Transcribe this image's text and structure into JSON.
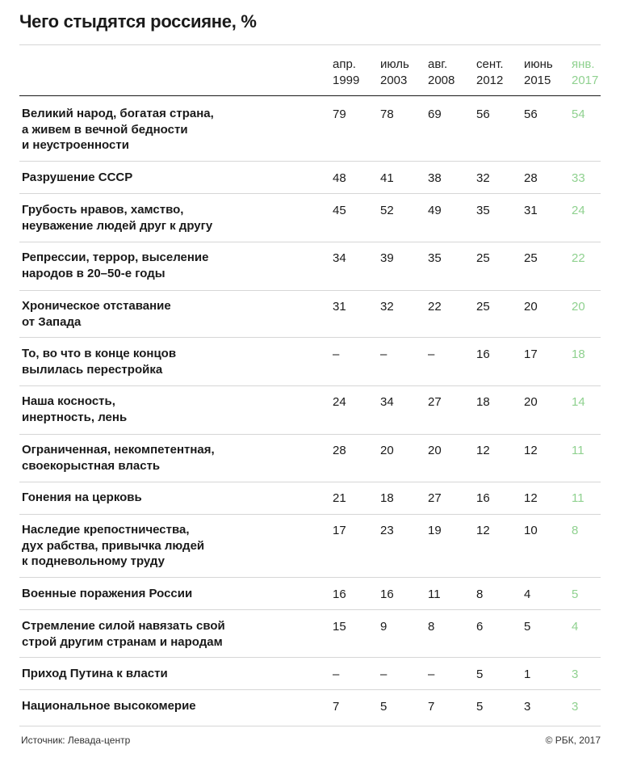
{
  "title": "Чего стыдятся россияне, %",
  "highlight_color": "#8fd18f",
  "columns": [
    {
      "l1": "апр.",
      "l2": "1999"
    },
    {
      "l1": "июль",
      "l2": "2003"
    },
    {
      "l1": "авг.",
      "l2": "2008"
    },
    {
      "l1": "сент.",
      "l2": "2012"
    },
    {
      "l1": "июнь",
      "l2": "2015"
    },
    {
      "l1": "янв.",
      "l2": "2017"
    }
  ],
  "rows": [
    {
      "label": "Великий народ, богатая страна,\nа живем в вечной бедности\nи неустроенности",
      "values": [
        "79",
        "78",
        "69",
        "56",
        "56",
        "54"
      ]
    },
    {
      "label": "Разрушение СССР",
      "values": [
        "48",
        "41",
        "38",
        "32",
        "28",
        "33"
      ]
    },
    {
      "label": "Грубость нравов, хамство,\nнеуважение людей друг к другу",
      "values": [
        "45",
        "52",
        "49",
        "35",
        "31",
        "24"
      ]
    },
    {
      "label": "Репрессии, террор, выселение\nнародов в 20–50-е годы",
      "values": [
        "34",
        "39",
        "35",
        "25",
        "25",
        "22"
      ]
    },
    {
      "label": "Хроническое отставание\nот Запада",
      "values": [
        "31",
        "32",
        "22",
        "25",
        "20",
        "20"
      ]
    },
    {
      "label": "То, во что в конце концов\nвылилась перестройка",
      "values": [
        "–",
        "–",
        "–",
        "16",
        "17",
        "18"
      ]
    },
    {
      "label": "Наша косность,\nинертность, лень",
      "values": [
        "24",
        "34",
        "27",
        "18",
        "20",
        "14"
      ]
    },
    {
      "label": "Ограниченная, некомпетентная,\nсвоекорыстная власть",
      "values": [
        "28",
        "20",
        "20",
        "12",
        "12",
        "11"
      ]
    },
    {
      "label": "Гонения на церковь",
      "values": [
        "21",
        "18",
        "27",
        "16",
        "12",
        "11"
      ]
    },
    {
      "label": "Наследие крепостничества,\nдух рабства, привычка людей\nк подневольному труду",
      "values": [
        "17",
        "23",
        "19",
        "12",
        "10",
        "8"
      ]
    },
    {
      "label": "Военные поражения России",
      "values": [
        "16",
        "16",
        "11",
        "8",
        "4",
        "5"
      ]
    },
    {
      "label": "Стремление силой навязать свой\nстрой другим странам и народам",
      "values": [
        "15",
        "9",
        "8",
        "6",
        "5",
        "4"
      ]
    },
    {
      "label": "Приход Путина к власти",
      "values": [
        "–",
        "–",
        "–",
        "5",
        "1",
        "3"
      ]
    },
    {
      "label": "Национальное высокомерие",
      "values": [
        "7",
        "5",
        "7",
        "5",
        "3",
        "3"
      ]
    }
  ],
  "chart_data": {
    "type": "table",
    "title": "Чего стыдятся россияне, %",
    "categories": [
      "апр. 1999",
      "июль 2003",
      "авг. 2008",
      "сент. 2012",
      "июнь 2015",
      "янв. 2017"
    ],
    "highlighted_column": "янв. 2017"
  },
  "footer": {
    "source": "Источник: Левада-центр",
    "copyright": "© РБК, 2017"
  }
}
